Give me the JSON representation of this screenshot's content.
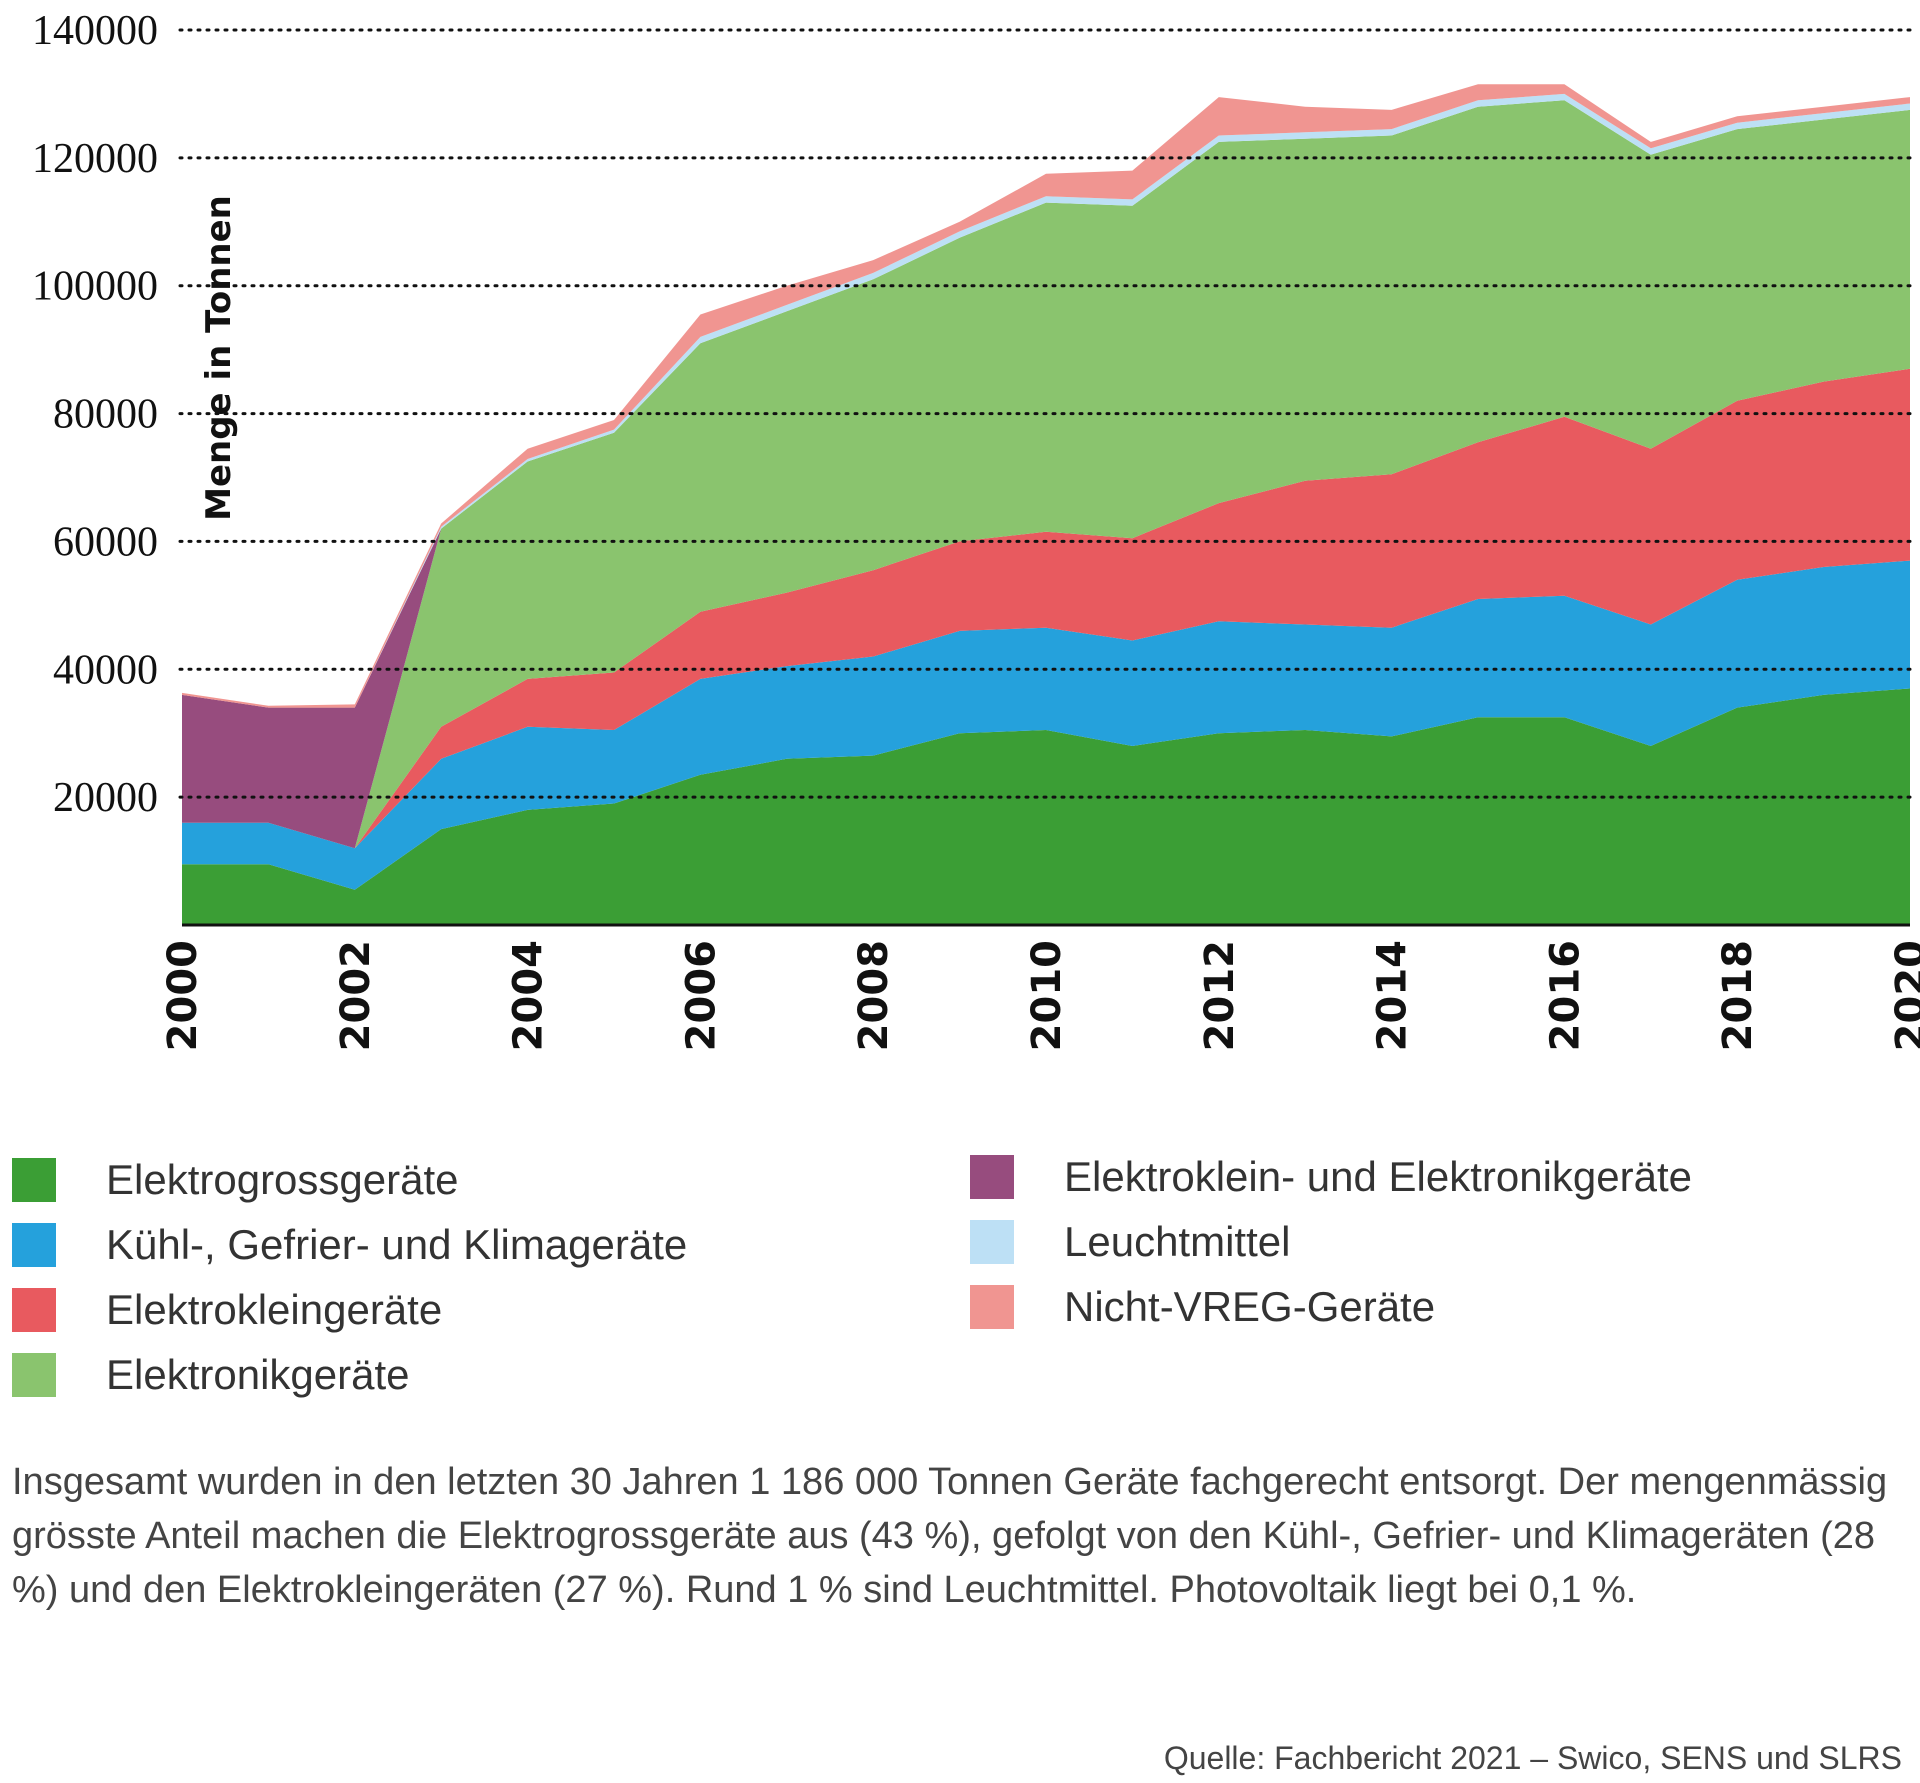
{
  "chart_data": {
    "type": "area",
    "stacked": true,
    "ylabel": "Menge in Tonnen",
    "ylim": [
      0,
      140000
    ],
    "yticks": [
      {
        "value": 20000,
        "label": "20000"
      },
      {
        "value": 40000,
        "label": "40000"
      },
      {
        "value": 60000,
        "label": "60000"
      },
      {
        "value": 80000,
        "label": "80000"
      },
      {
        "value": 100000,
        "label": "100000"
      },
      {
        "value": 120000,
        "label": "120000"
      },
      {
        "value": 140000,
        "label": "140000"
      }
    ],
    "x": [
      2000,
      2001,
      2002,
      2003,
      2004,
      2005,
      2006,
      2007,
      2008,
      2009,
      2010,
      2011,
      2012,
      2013,
      2014,
      2015,
      2016,
      2017,
      2018,
      2019,
      2020
    ],
    "xticks": [
      "2000",
      "2002",
      "2004",
      "2006",
      "2008",
      "2010",
      "2012",
      "2014",
      "2016",
      "2018",
      "2020"
    ],
    "grid": "horizontal-dotted",
    "series": [
      {
        "name": "Elektrogrossgeräte",
        "color": "#3b9e35",
        "values": [
          9500,
          9500,
          5500,
          15000,
          18000,
          19000,
          23500,
          26000,
          26500,
          30000,
          30500,
          28000,
          30000,
          30500,
          29500,
          32500,
          32500,
          28000,
          34000,
          36000,
          37000
        ]
      },
      {
        "name": "Kühl-, Gefrier- und Klimageräte",
        "color": "#25a1dc",
        "values": [
          6500,
          6500,
          6500,
          11000,
          13000,
          11500,
          15000,
          14500,
          15500,
          16000,
          16000,
          16500,
          17500,
          16500,
          17000,
          18500,
          19000,
          19000,
          20000,
          20000,
          20000
        ]
      },
      {
        "name": "Elektrokleingeräte",
        "color": "#e85a5f",
        "values": [
          0,
          0,
          0,
          5000,
          7500,
          9000,
          10500,
          11500,
          13500,
          14000,
          15000,
          16000,
          18500,
          22500,
          24000,
          24500,
          28000,
          27500,
          28000,
          29000,
          30000
        ]
      },
      {
        "name": "Elektronikgeräte",
        "color": "#8ac46e",
        "values": [
          0,
          0,
          0,
          31000,
          34000,
          37500,
          42000,
          44000,
          45500,
          47500,
          51500,
          52000,
          56500,
          53500,
          53000,
          52500,
          49500,
          46000,
          42500,
          41000,
          40500
        ]
      },
      {
        "name": "Elektroklein- und Elektronikgeräte",
        "color": "#974c7e",
        "values": [
          20000,
          18000,
          22000,
          0,
          0,
          0,
          0,
          0,
          0,
          0,
          0,
          0,
          0,
          0,
          0,
          0,
          0,
          0,
          0,
          0,
          0
        ]
      },
      {
        "name": "Leuchtmittel",
        "color": "#bde0f5",
        "values": [
          0,
          0,
          0,
          300,
          400,
          500,
          1000,
          1000,
          1000,
          1000,
          1000,
          1000,
          1000,
          1000,
          1000,
          1000,
          1000,
          1000,
          1000,
          1000,
          1000
        ]
      },
      {
        "name": "Nicht-VREG-Geräte",
        "color": "#f09591",
        "values": [
          300,
          300,
          500,
          500,
          1600,
          1500,
          3500,
          3000,
          2000,
          1500,
          3500,
          4500,
          6000,
          4000,
          3000,
          2500,
          1500,
          1000,
          1000,
          1000,
          1000
        ]
      }
    ]
  },
  "legend": [
    {
      "label": "Elektrogrossgeräte",
      "color": "#3b9e35"
    },
    {
      "label": "Kühl-, Gefrier- und Klimageräte",
      "color": "#25a1dc"
    },
    {
      "label": "Elektrokleingeräte",
      "color": "#e85a5f"
    },
    {
      "label": "Elektronikgeräte",
      "color": "#8ac46e"
    },
    {
      "label": "Elektroklein- und Elektronikgeräte",
      "color": "#974c7e"
    },
    {
      "label": "Leuchtmittel",
      "color": "#bde0f5"
    },
    {
      "label": "Nicht-VREG-Geräte",
      "color": "#f09591"
    }
  ],
  "note": "Insgesamt wurden in den letzten 30 Jahren 1 186 000 Tonnen Geräte fachgerecht entsorgt. Der mengenmässig grösste Anteil machen die Elektrogrossgeräte aus (43 %), gefolgt von den Kühl-, Gefrier- und Klimageräten (28 %) und den Elektrokleingeräten (27 %). Rund 1 % sind Leuchtmittel. Photovoltaik liegt bei 0,1 %.",
  "source": "Quelle: Fachbericht 2021 – Swico, SENS und SLRS"
}
